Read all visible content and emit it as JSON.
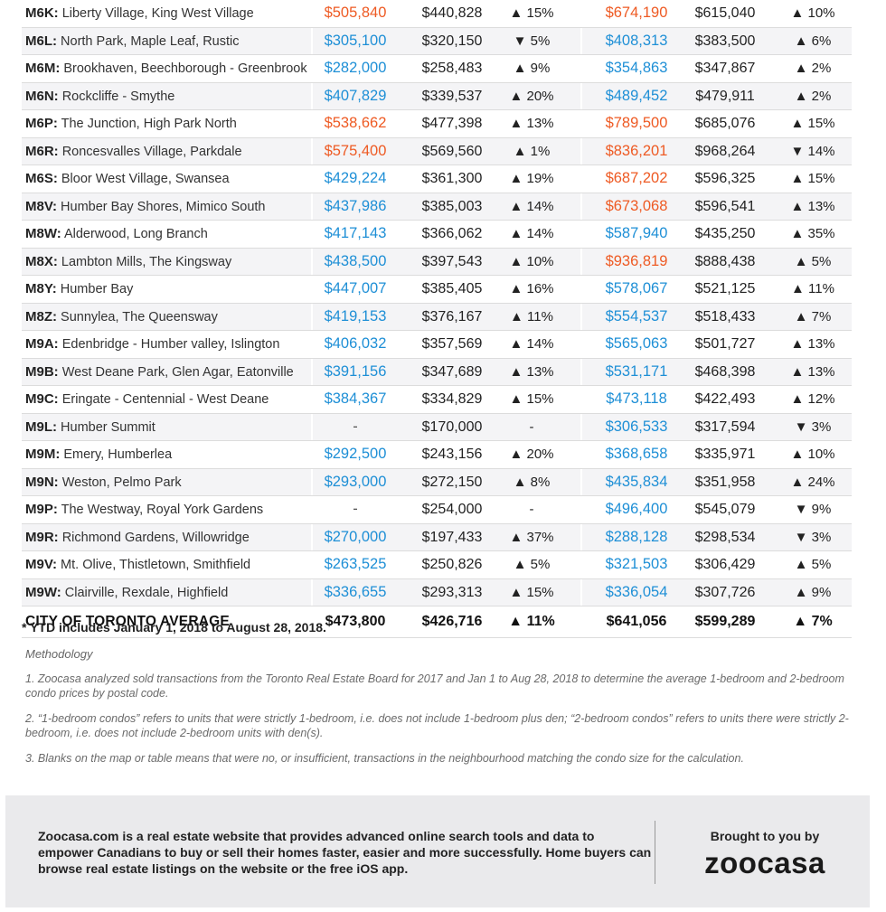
{
  "colors": {
    "blue": "#1e8fd6",
    "orange": "#ee5a23"
  },
  "icons": {
    "up": "triangle-up-icon",
    "down": "triangle-down-icon"
  },
  "rows": [
    {
      "code": "M6K:",
      "name": "Liberty Village, King West Village",
      "ytd1": "$505,840",
      "ytd1_color": "orange",
      "prev1": "$440,828",
      "dir1": "up",
      "pct1": "15%",
      "ytd2": "$674,190",
      "ytd2_color": "orange",
      "prev2": "$615,040",
      "dir2": "up",
      "pct2": "10%"
    },
    {
      "code": "M6L:",
      "name": "North Park, Maple Leaf, Rustic",
      "ytd1": "$305,100",
      "ytd1_color": "blue",
      "prev1": "$320,150",
      "dir1": "down",
      "pct1": "5%",
      "ytd2": "$408,313",
      "ytd2_color": "blue",
      "prev2": "$383,500",
      "dir2": "up",
      "pct2": "6%"
    },
    {
      "code": "M6M:",
      "name": "Brookhaven, Beechborough - Greenbrook",
      "ytd1": "$282,000",
      "ytd1_color": "blue",
      "prev1": "$258,483",
      "dir1": "up",
      "pct1": "9%",
      "ytd2": "$354,863",
      "ytd2_color": "blue",
      "prev2": "$347,867",
      "dir2": "up",
      "pct2": "2%"
    },
    {
      "code": "M6N:",
      "name": "Rockcliffe - Smythe",
      "ytd1": "$407,829",
      "ytd1_color": "blue",
      "prev1": "$339,537",
      "dir1": "up",
      "pct1": "20%",
      "ytd2": "$489,452",
      "ytd2_color": "blue",
      "prev2": "$479,911",
      "dir2": "up",
      "pct2": "2%"
    },
    {
      "code": "M6P:",
      "name": "The Junction, High Park North",
      "ytd1": "$538,662",
      "ytd1_color": "orange",
      "prev1": "$477,398",
      "dir1": "up",
      "pct1": "13%",
      "ytd2": "$789,500",
      "ytd2_color": "orange",
      "prev2": "$685,076",
      "dir2": "up",
      "pct2": "15%"
    },
    {
      "code": "M6R:",
      "name": "Roncesvalles Village, Parkdale",
      "ytd1": "$575,400",
      "ytd1_color": "orange",
      "prev1": "$569,560",
      "dir1": "up",
      "pct1": "1%",
      "ytd2": "$836,201",
      "ytd2_color": "orange",
      "prev2": "$968,264",
      "dir2": "down",
      "pct2": "14%"
    },
    {
      "code": "M6S:",
      "name": "Bloor West Village, Swansea",
      "ytd1": "$429,224",
      "ytd1_color": "blue",
      "prev1": "$361,300",
      "dir1": "up",
      "pct1": "19%",
      "ytd2": "$687,202",
      "ytd2_color": "orange",
      "prev2": "$596,325",
      "dir2": "up",
      "pct2": "15%"
    },
    {
      "code": "M8V:",
      "name": "Humber Bay Shores, Mimico South",
      "ytd1": "$437,986",
      "ytd1_color": "blue",
      "prev1": "$385,003",
      "dir1": "up",
      "pct1": "14%",
      "ytd2": "$673,068",
      "ytd2_color": "orange",
      "prev2": "$596,541",
      "dir2": "up",
      "pct2": "13%"
    },
    {
      "code": "M8W:",
      "name": "Alderwood, Long Branch",
      "ytd1": "$417,143",
      "ytd1_color": "blue",
      "prev1": "$366,062",
      "dir1": "up",
      "pct1": "14%",
      "ytd2": "$587,940",
      "ytd2_color": "blue",
      "prev2": "$435,250",
      "dir2": "up",
      "pct2": "35%"
    },
    {
      "code": "M8X:",
      "name": "Lambton Mills, The Kingsway",
      "ytd1": "$438,500",
      "ytd1_color": "blue",
      "prev1": "$397,543",
      "dir1": "up",
      "pct1": "10%",
      "ytd2": "$936,819",
      "ytd2_color": "orange",
      "prev2": "$888,438",
      "dir2": "up",
      "pct2": "5%"
    },
    {
      "code": "M8Y:",
      "name": "Humber Bay",
      "ytd1": "$447,007",
      "ytd1_color": "blue",
      "prev1": "$385,405",
      "dir1": "up",
      "pct1": "16%",
      "ytd2": "$578,067",
      "ytd2_color": "blue",
      "prev2": "$521,125",
      "dir2": "up",
      "pct2": "11%"
    },
    {
      "code": "M8Z:",
      "name": "Sunnylea, The Queensway",
      "ytd1": "$419,153",
      "ytd1_color": "blue",
      "prev1": "$376,167",
      "dir1": "up",
      "pct1": "11%",
      "ytd2": "$554,537",
      "ytd2_color": "blue",
      "prev2": "$518,433",
      "dir2": "up",
      "pct2": "7%"
    },
    {
      "code": "M9A:",
      "name": "Edenbridge - Humber valley, Islington",
      "ytd1": "$406,032",
      "ytd1_color": "blue",
      "prev1": "$357,569",
      "dir1": "up",
      "pct1": "14%",
      "ytd2": "$565,063",
      "ytd2_color": "blue",
      "prev2": "$501,727",
      "dir2": "up",
      "pct2": "13%"
    },
    {
      "code": "M9B:",
      "name": "West Deane Park, Glen Agar, Eatonville",
      "ytd1": "$391,156",
      "ytd1_color": "blue",
      "prev1": "$347,689",
      "dir1": "up",
      "pct1": "13%",
      "ytd2": "$531,171",
      "ytd2_color": "blue",
      "prev2": "$468,398",
      "dir2": "up",
      "pct2": "13%"
    },
    {
      "code": "M9C:",
      "name": "Eringate - Centennial - West Deane",
      "ytd1": "$384,367",
      "ytd1_color": "blue",
      "prev1": "$334,829",
      "dir1": "up",
      "pct1": "15%",
      "ytd2": "$473,118",
      "ytd2_color": "blue",
      "prev2": "$422,493",
      "dir2": "up",
      "pct2": "12%"
    },
    {
      "code": "M9L:",
      "name": "Humber Summit",
      "ytd1": "-",
      "ytd1_color": "dash",
      "prev1": "$170,000",
      "dir1": "none",
      "pct1": "-",
      "ytd2": "$306,533",
      "ytd2_color": "blue",
      "prev2": "$317,594",
      "dir2": "down",
      "pct2": "3%"
    },
    {
      "code": "M9M:",
      "name": "Emery, Humberlea",
      "ytd1": "$292,500",
      "ytd1_color": "blue",
      "prev1": "$243,156",
      "dir1": "up",
      "pct1": "20%",
      "ytd2": "$368,658",
      "ytd2_color": "blue",
      "prev2": "$335,971",
      "dir2": "up",
      "pct2": "10%"
    },
    {
      "code": "M9N:",
      "name": "Weston, Pelmo Park",
      "ytd1": "$293,000",
      "ytd1_color": "blue",
      "prev1": "$272,150",
      "dir1": "up",
      "pct1": "8%",
      "ytd2": "$435,834",
      "ytd2_color": "blue",
      "prev2": "$351,958",
      "dir2": "up",
      "pct2": "24%"
    },
    {
      "code": "M9P:",
      "name": "The Westway, Royal York Gardens",
      "ytd1": "-",
      "ytd1_color": "dash",
      "prev1": "$254,000",
      "dir1": "none",
      "pct1": "-",
      "ytd2": "$496,400",
      "ytd2_color": "blue",
      "prev2": "$545,079",
      "dir2": "down",
      "pct2": "9%"
    },
    {
      "code": "M9R:",
      "name": "Richmond Gardens, Willowridge",
      "ytd1": "$270,000",
      "ytd1_color": "blue",
      "prev1": "$197,433",
      "dir1": "up",
      "pct1": "37%",
      "ytd2": "$288,128",
      "ytd2_color": "blue",
      "prev2": "$298,534",
      "dir2": "down",
      "pct2": "3%"
    },
    {
      "code": "M9V:",
      "name": "Mt. Olive, Thistletown, Smithfield",
      "ytd1": "$263,525",
      "ytd1_color": "blue",
      "prev1": "$250,826",
      "dir1": "up",
      "pct1": "5%",
      "ytd2": "$321,503",
      "ytd2_color": "blue",
      "prev2": "$306,429",
      "dir2": "up",
      "pct2": "5%"
    },
    {
      "code": "M9W:",
      "name": "Clairville, Rexdale, Highfield",
      "ytd1": "$336,655",
      "ytd1_color": "blue",
      "prev1": "$293,313",
      "dir1": "up",
      "pct1": "15%",
      "ytd2": "$336,054",
      "ytd2_color": "blue",
      "prev2": "$307,726",
      "dir2": "up",
      "pct2": "9%"
    }
  ],
  "average": {
    "label": "CITY OF TORONTO AVERAGE",
    "ytd1": "$473,800",
    "prev1": "$426,716",
    "dir1": "up",
    "pct1": "11%",
    "ytd2": "$641,056",
    "prev2": "$599,289",
    "dir2": "up",
    "pct2": "7%"
  },
  "notes": {
    "ytd": "* YTD includes January 1, 2018 to August 28, 2018.",
    "methodology": "Methodology",
    "items": [
      "1. Zoocasa analyzed sold transactions from the Toronto Real Estate Board for 2017 and Jan 1 to Aug 28, 2018 to determine the average 1-bedroom and 2-bedroom condo prices by postal code.",
      "2. “1-bedroom condos” refers to units that were strictly 1-bedroom, i.e. does not include 1-bedroom plus den; “2-bedroom condos” refers to units there were strictly 2-bedroom, i.e. does not include 2-bedroom units with den(s).",
      "3. Blanks on the map or table means that were no, or insufficient, transactions in the neighbourhood matching the condo size for the calculation."
    ]
  },
  "footer": {
    "text": "Zoocasa.com is a real estate website that provides advanced online search tools and data to empower Canadians to buy or sell their homes faster, easier and more successfully. Home buyers can browse real estate listings on the website or the free iOS app.",
    "brought": "Brought to you by",
    "logo": "zoocasa"
  }
}
